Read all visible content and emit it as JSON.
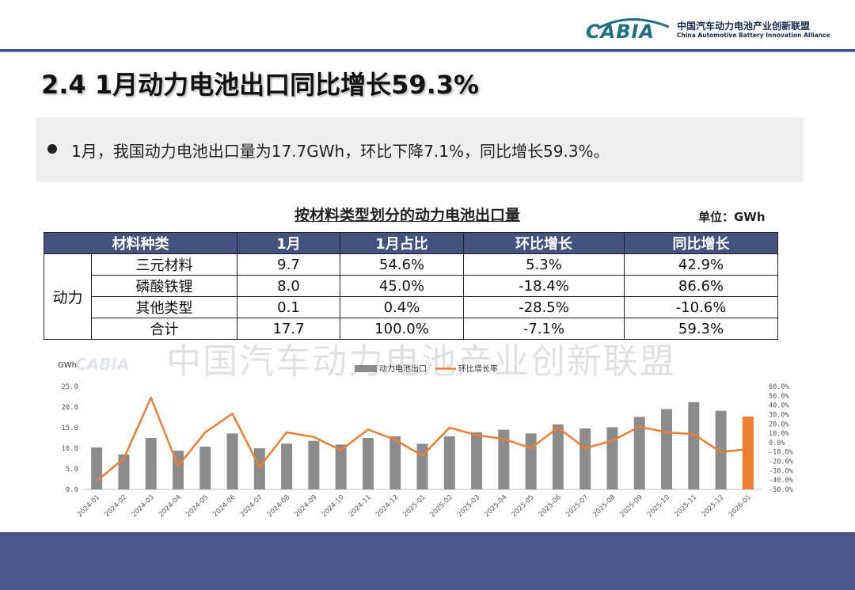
{
  "header": {
    "logo_word": "CABIA",
    "logo_cn": "中国汽车动力电池产业创新联盟",
    "logo_en": "China Automotive Battery Innovation Alliance"
  },
  "page_title": "2.4 1月动力电池出口同比增长59.3%",
  "summary": "1月，我国动力电池出口量为17.7GWh，环比下降7.1%，同比增长59.3%。",
  "table": {
    "title": "按材料类型划分的动力电池出口量",
    "unit": "单位：GWh",
    "headers": [
      "材料种类",
      "1月",
      "1月占比",
      "环比增长",
      "同比增长"
    ],
    "group_label": "动力",
    "rows": [
      {
        "name": "三元材料",
        "jan": "9.7",
        "share": "54.6%",
        "mom": "5.3%",
        "yoy": "42.9%"
      },
      {
        "name": "磷酸铁锂",
        "jan": "8.0",
        "share": "45.0%",
        "mom": "-18.4%",
        "yoy": "86.6%"
      },
      {
        "name": "其他类型",
        "jan": "0.1",
        "share": "0.4%",
        "mom": "-28.5%",
        "yoy": "-10.6%"
      },
      {
        "name": "合计",
        "jan": "17.7",
        "share": "100.0%",
        "mom": "-7.1%",
        "yoy": "59.3%"
      }
    ]
  },
  "watermark": "中国汽车动力电池产业创新联盟",
  "chart_data": {
    "type": "bar",
    "ylabel": "GWh",
    "categories": [
      "2024-01",
      "2024-02",
      "2024-03",
      "2024-04",
      "2024-05",
      "2024-06",
      "2024-07",
      "2024-08",
      "2024-09",
      "2024-10",
      "2024-11",
      "2024-12",
      "2025-01",
      "2025-02",
      "2025-03",
      "2025-04",
      "2025-05",
      "2025-06",
      "2025-07",
      "2025-08",
      "2025-09",
      "2025-10",
      "2025-11",
      "2025-12",
      "2026-01"
    ],
    "series": [
      {
        "name": "动力电池出口",
        "type": "bar",
        "axis": "left",
        "color": "#8c8c8c",
        "highlight_color": "#ed7d31",
        "values": [
          10.2,
          8.5,
          12.5,
          9.4,
          10.4,
          13.6,
          10.0,
          11.1,
          11.8,
          10.9,
          12.5,
          12.9,
          11.1,
          12.9,
          13.9,
          14.5,
          13.6,
          15.8,
          14.8,
          15.1,
          17.6,
          19.5,
          21.2,
          19.1,
          17.7
        ]
      },
      {
        "name": "环比增长率",
        "type": "line",
        "axis": "right",
        "color": "#ed7d31",
        "values": [
          -41,
          -17,
          48,
          -25,
          11,
          31,
          -26,
          11,
          6,
          -8,
          14,
          3,
          -14,
          16,
          8,
          4,
          -6,
          16,
          -6,
          2,
          17,
          11,
          9,
          -10,
          -7.1
        ]
      }
    ],
    "y_left": {
      "lim": [
        0,
        25
      ],
      "ticks": [
        "0.0",
        "5.0",
        "10.0",
        "15.0",
        "20.0",
        "25.0"
      ]
    },
    "y_right": {
      "lim": [
        -50,
        60
      ],
      "ticks": [
        "-50.0%",
        "-40.0%",
        "-30.0%",
        "-20.0%",
        "-10.0%",
        "0.0%",
        "10.0%",
        "20.0%",
        "30.0%",
        "40.0%",
        "50.0%",
        "60.0%"
      ]
    },
    "legend": "top-center",
    "grid": false
  }
}
